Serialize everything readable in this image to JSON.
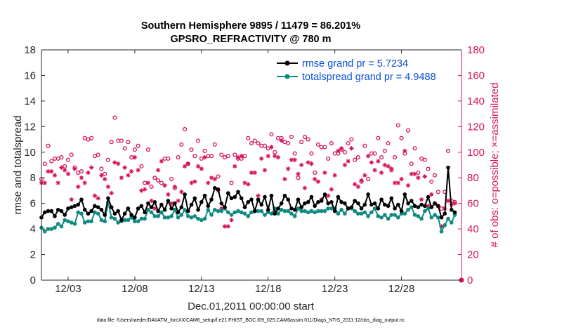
{
  "chart_data": {
    "type": "line",
    "title_line1": "Southern Hemisphere 9895 / 11479 = 86.201%",
    "title_line2": "GPSRO_REFRACTIVITY @ 780 m",
    "xlabel": "Dec.01,2011 00:00:00 start",
    "ylabel_left": "rmse and totalspread",
    "ylabel_right": "# of obs: o=possible; ×=assimilated",
    "xlim": [
      0,
      31.5
    ],
    "ylim_left": [
      0,
      18
    ],
    "ylim_right": [
      0,
      180
    ],
    "x_ticks": [
      {
        "value": 2,
        "label": "12/03"
      },
      {
        "value": 7,
        "label": "12/08"
      },
      {
        "value": 12,
        "label": "12/13"
      },
      {
        "value": 17,
        "label": "12/18"
      },
      {
        "value": 22,
        "label": "12/23"
      },
      {
        "value": 27,
        "label": "12/28"
      }
    ],
    "y_ticks_left": [
      "0",
      "2",
      "4",
      "6",
      "8",
      "10",
      "12",
      "14",
      "16",
      "18"
    ],
    "y_ticks_right": [
      "0",
      "20",
      "40",
      "60",
      "80",
      "100",
      "120",
      "140",
      "160",
      "180"
    ],
    "colors": {
      "rmse": "#000000",
      "totalspread": "#0f8a80",
      "obs": "#d6125b",
      "legend_text": "#0a4fd6"
    },
    "legend": [
      {
        "label": "rmse grand pr = 5.7234",
        "series": "rmse"
      },
      {
        "label": "totalspread grand pr = 4.9488",
        "series": "totalspread"
      }
    ],
    "x": [
      0.0,
      0.25,
      0.5,
      0.75,
      1.0,
      1.25,
      1.5,
      1.75,
      2.0,
      2.25,
      2.5,
      2.75,
      3.0,
      3.25,
      3.5,
      3.75,
      4.0,
      4.25,
      4.5,
      4.75,
      5.0,
      5.25,
      5.5,
      5.75,
      6.0,
      6.25,
      6.5,
      6.75,
      7.0,
      7.25,
      7.5,
      7.75,
      8.0,
      8.25,
      8.5,
      8.75,
      9.0,
      9.25,
      9.5,
      9.75,
      10.0,
      10.25,
      10.5,
      10.75,
      11.0,
      11.25,
      11.5,
      11.75,
      12.0,
      12.25,
      12.5,
      12.75,
      13.0,
      13.25,
      13.5,
      13.75,
      14.0,
      14.25,
      14.5,
      14.75,
      15.0,
      15.25,
      15.5,
      15.75,
      16.0,
      16.25,
      16.5,
      16.75,
      17.0,
      17.25,
      17.5,
      17.75,
      18.0,
      18.25,
      18.5,
      18.75,
      19.0,
      19.25,
      19.5,
      19.75,
      20.0,
      20.25,
      20.5,
      20.75,
      21.0,
      21.25,
      21.5,
      21.75,
      22.0,
      22.25,
      22.5,
      22.75,
      23.0,
      23.25,
      23.5,
      23.75,
      24.0,
      24.25,
      24.5,
      24.75,
      25.0,
      25.25,
      25.5,
      25.75,
      26.0,
      26.25,
      26.5,
      26.75,
      27.0,
      27.25,
      27.5,
      27.75,
      28.0,
      28.25,
      28.5,
      28.75,
      29.0,
      29.25,
      29.5,
      29.75,
      30.0,
      30.25,
      30.5,
      30.75,
      31.0
    ],
    "series": [
      {
        "name": "rmse",
        "values": [
          4.9,
          5.3,
          5.4,
          5.4,
          5.0,
          5.5,
          5.4,
          5.1,
          5.6,
          5.7,
          5.8,
          5.9,
          6.3,
          5.5,
          5.2,
          5.4,
          5.8,
          5.7,
          5.5,
          5.1,
          6.4,
          5.7,
          5.2,
          5.4,
          4.7,
          5.2,
          5.6,
          5.1,
          4.9,
          5.6,
          5.8,
          5.3,
          6.0,
          5.7,
          6.1,
          5.4,
          5.9,
          5.5,
          6.2,
          5.6,
          6.0,
          5.3,
          5.7,
          6.7,
          5.4,
          5.9,
          6.4,
          5.5,
          6.1,
          6.6,
          5.8,
          6.3,
          7.2,
          7.1,
          6.0,
          5.7,
          6.8,
          6.4,
          6.5,
          6.9,
          6.4,
          5.7,
          6.1,
          6.3,
          5.4,
          6.3,
          5.9,
          6.5,
          5.5,
          6.6,
          5.2,
          5.6,
          6.0,
          6.6,
          6.3,
          5.6,
          5.5,
          6.3,
          5.7,
          6.0,
          6.1,
          6.5,
          5.8,
          6.1,
          6.2,
          6.7,
          6.0,
          6.1,
          5.4,
          6.5,
          6.1,
          6.0,
          5.6,
          5.7,
          6.2,
          6.0,
          5.6,
          5.9,
          6.7,
          5.9,
          6.0,
          5.6,
          6.3,
          5.9,
          5.8,
          6.4,
          5.6,
          5.9,
          5.4,
          6.7,
          6.0,
          6.2,
          5.8,
          5.7,
          5.9,
          5.8,
          6.5,
          5.7,
          6.0,
          5.8,
          4.9,
          5.2,
          8.8,
          5.5,
          5.3
        ]
      },
      {
        "name": "totalspread",
        "values": [
          4.1,
          3.8,
          4.0,
          4.0,
          4.1,
          4.4,
          4.2,
          4.7,
          4.6,
          4.5,
          4.4,
          5.3,
          5.2,
          4.5,
          4.6,
          4.6,
          5.3,
          5.2,
          4.7,
          4.6,
          6.1,
          4.9,
          4.8,
          4.5,
          4.6,
          4.7,
          4.7,
          4.9,
          4.6,
          4.6,
          4.8,
          4.8,
          5.5,
          5.3,
          5.0,
          5.0,
          5.3,
          4.9,
          4.9,
          5.0,
          5.5,
          4.9,
          5.1,
          5.5,
          5.0,
          4.9,
          5.0,
          4.8,
          4.7,
          4.8,
          5.5,
          5.1,
          5.5,
          5.4,
          5.4,
          5.6,
          5.3,
          5.1,
          5.3,
          5.4,
          5.3,
          5.2,
          5.0,
          5.3,
          5.4,
          5.4,
          5.4,
          5.1,
          5.3,
          5.2,
          5.6,
          5.2,
          5.5,
          5.4,
          5.4,
          5.2,
          5.0,
          5.6,
          5.4,
          5.4,
          5.3,
          5.4,
          5.3,
          5.4,
          5.4,
          5.4,
          5.6,
          5.6,
          5.6,
          5.2,
          5.5,
          5.2,
          5.6,
          5.6,
          5.4,
          5.2,
          5.2,
          5.3,
          5.0,
          5.3,
          5.6,
          5.0,
          4.9,
          5.1,
          4.8,
          5.1,
          5.1,
          4.9,
          5.2,
          5.2,
          5.5,
          5.7,
          5.1,
          5.0,
          4.8,
          5.4,
          5.6,
          4.9,
          5.1,
          4.9,
          3.8,
          4.3,
          4.8,
          4.5,
          5.1
        ]
      },
      {
        "name": "obs_possible",
        "values": [
          79.0,
          91.0,
          105.0,
          93.0,
          95.0,
          95.0,
          96.0,
          89.0,
          94.0,
          98.0,
          88.0,
          84.0,
          85.0,
          111.0,
          110.0,
          111.0,
          97.0,
          98.0,
          87.0,
          83.0,
          94.0,
          108.0,
          127.0,
          109.0,
          109.0,
          103.0,
          108.0,
          96.0,
          102.0,
          105.0,
          89.0,
          76.0,
          102.0,
          73.0,
          80.0,
          78.0,
          76.0,
          95.0,
          95.0,
          79.0,
          72.0,
          96.0,
          106.0,
          118.0,
          91.0,
          102.0,
          97.0,
          109.0,
          95.0,
          101.0,
          97.0,
          97.0,
          106.0,
          81.0,
          98.0,
          96.0,
          97.0,
          76.0,
          98.0,
          95.0,
          95.0,
          97.0,
          111.0,
          107.0,
          109.0,
          107.0,
          105.0,
          105.0,
          103.0,
          114.0,
          100.0,
          111.0,
          111.0,
          108.0,
          107.0,
          112.0,
          99.0,
          80.0,
          108.0,
          112.0,
          110.0,
          99.0,
          84.0,
          106.0,
          104.0,
          104.0,
          95.0,
          107.0,
          99.0,
          99.0,
          102.0,
          100.0,
          107.0,
          110.0,
          94.0,
          96.0,
          77.0,
          105.0,
          79.0,
          99.0,
          99.0,
          111.0,
          96.0,
          101.0,
          107.0,
          86.0,
          96.0,
          121.0,
          111.0,
          99.0,
          117.0,
          91.0,
          103.0,
          84.0,
          95.0,
          94.0,
          87.0,
          77.0,
          82.0,
          69.0,
          56.0,
          69.0,
          101.0,
          62.0,
          61.0
        ]
      },
      {
        "name": "obs_assimilated",
        "values": [
          76.0,
          76.0,
          85.0,
          85.0,
          82.0,
          76.0,
          88.0,
          86.0,
          83.0,
          63.0,
          87.0,
          73.0,
          80.0,
          76.0,
          84.0,
          88.0,
          66.0,
          64.0,
          82.0,
          79.0,
          73.0,
          68.0,
          92.0,
          91.0,
          80.0,
          88.0,
          82.0,
          85.0,
          96.0,
          86.0,
          70.0,
          71.0,
          76.0,
          62.0,
          56.0,
          86.0,
          93.0,
          74.0,
          67.0,
          60.0,
          73.0,
          62.0,
          69.0,
          89.0,
          91.0,
          76.0,
          77.0,
          89.0,
          87.0,
          96.0,
          76.0,
          80.0,
          79.0,
          70.0,
          56.0,
          42.0,
          42.0,
          47.0,
          89.0,
          96.0,
          97.0,
          76.0,
          75.0,
          84.0,
          84.0,
          66.0,
          95.0,
          86.0,
          97.0,
          104.0,
          97.0,
          96.0,
          109.0,
          79.0,
          87.0,
          94.0,
          94.0,
          83.0,
          90.0,
          72.0,
          92.0,
          91.0,
          79.0,
          77.0,
          63.0,
          84.0,
          66.0,
          71.0,
          82.0,
          101.0,
          103.0,
          90.0,
          93.0,
          103.0,
          75.0,
          73.0,
          78.0,
          82.0,
          97.0,
          92.0,
          86.0,
          93.0,
          84.0,
          90.0,
          89.0,
          87.0,
          76.0,
          76.0,
          79.0,
          101.0,
          74.0,
          83.0,
          83.0,
          80.0,
          63.0,
          81.0,
          58.0,
          67.0,
          60.0,
          58.0,
          42.0,
          56.0,
          62.0,
          59.0,
          60.0
        ]
      }
    ],
    "footer": "data file: /Users/raeder/DAI/ATM_forcXX/CAM6_setup/f.e21.FHIST_BGC.f09_025.CAM6assim.011/Diags_NTrS_2011-12/obs_diag_output.nc"
  }
}
